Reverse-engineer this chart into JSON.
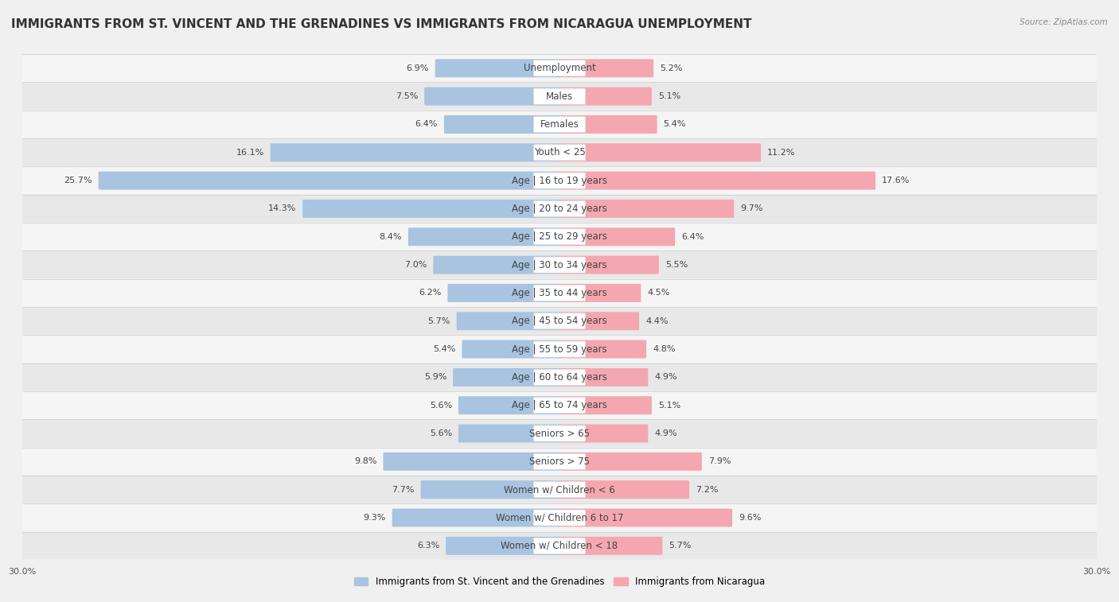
{
  "title": "IMMIGRANTS FROM ST. VINCENT AND THE GRENADINES VS IMMIGRANTS FROM NICARAGUA UNEMPLOYMENT",
  "source": "Source: ZipAtlas.com",
  "categories": [
    "Unemployment",
    "Males",
    "Females",
    "Youth < 25",
    "Age | 16 to 19 years",
    "Age | 20 to 24 years",
    "Age | 25 to 29 years",
    "Age | 30 to 34 years",
    "Age | 35 to 44 years",
    "Age | 45 to 54 years",
    "Age | 55 to 59 years",
    "Age | 60 to 64 years",
    "Age | 65 to 74 years",
    "Seniors > 65",
    "Seniors > 75",
    "Women w/ Children < 6",
    "Women w/ Children 6 to 17",
    "Women w/ Children < 18"
  ],
  "left_values": [
    6.9,
    7.5,
    6.4,
    16.1,
    25.7,
    14.3,
    8.4,
    7.0,
    6.2,
    5.7,
    5.4,
    5.9,
    5.6,
    5.6,
    9.8,
    7.7,
    9.3,
    6.3
  ],
  "right_values": [
    5.2,
    5.1,
    5.4,
    11.2,
    17.6,
    9.7,
    6.4,
    5.5,
    4.5,
    4.4,
    4.8,
    4.9,
    5.1,
    4.9,
    7.9,
    7.2,
    9.6,
    5.7
  ],
  "left_color": "#a8c4e0",
  "right_color": "#f4a7b0",
  "left_label": "Immigrants from St. Vincent and the Grenadines",
  "right_label": "Immigrants from Nicaragua",
  "xlim": 30.0,
  "bg_color": "#f0f0f0",
  "row_light": "#f5f5f5",
  "row_dark": "#e8e8e8",
  "title_fontsize": 11,
  "label_fontsize": 8.5,
  "value_fontsize": 8,
  "axis_fontsize": 8
}
